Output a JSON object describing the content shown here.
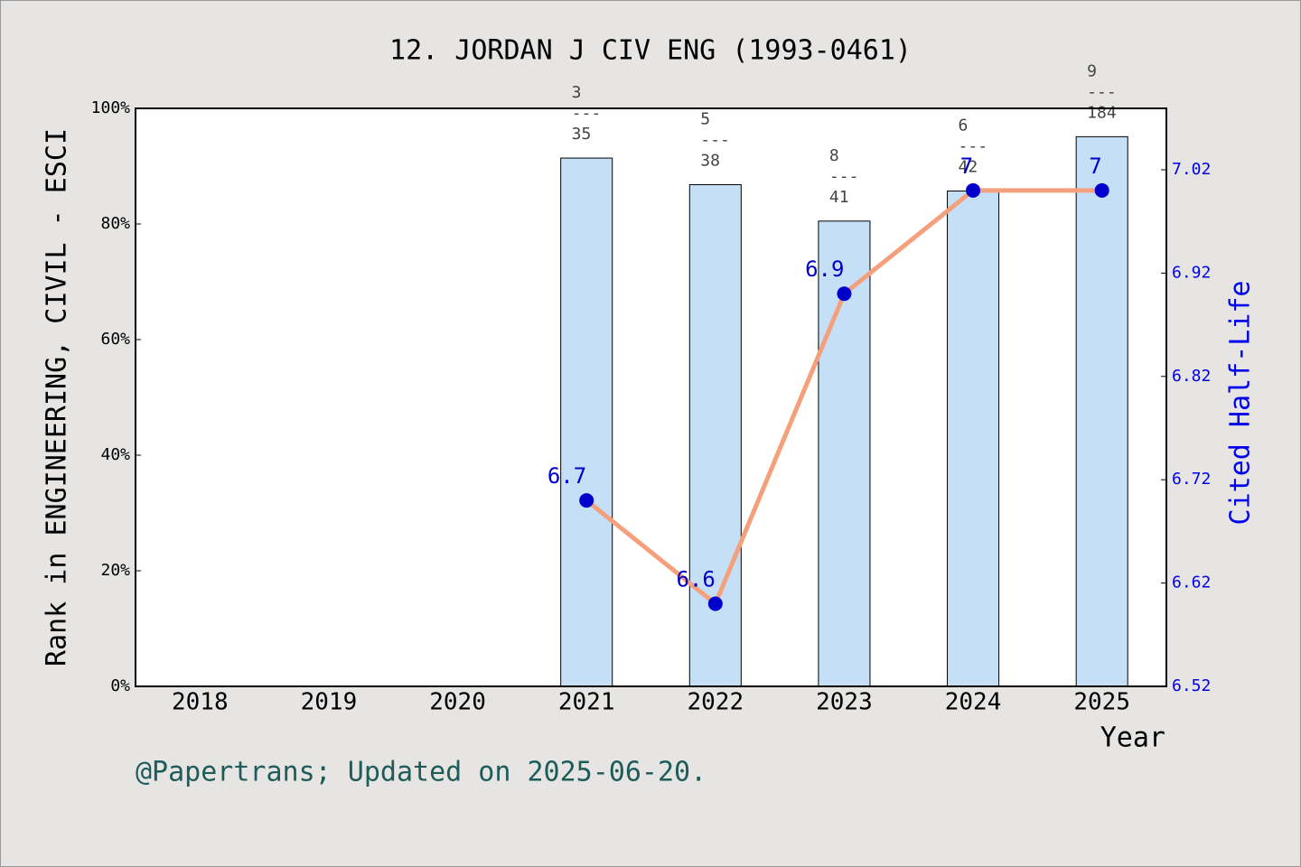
{
  "chart_data": {
    "type": "bar_line",
    "title": "12. JORDAN J CIV ENG (1993-0461)",
    "y_label": "Rank in ENGINEERING, CIVIL - ESCI",
    "y2_label": "Cited Half-Life",
    "x_label": "Year",
    "footer": "@Papertrans; Updated on 2025-06-20.",
    "categories": [
      "2018",
      "2019",
      "2020",
      "2021",
      "2022",
      "2023",
      "2024",
      "2025"
    ],
    "series": [
      {
        "name": "Rank",
        "kind": "bar",
        "color": "#c5dff6",
        "values": [
          null,
          null,
          null,
          91.4,
          86.8,
          80.5,
          85.7,
          95.1
        ],
        "bar_labels": [
          null,
          null,
          null,
          [
            "3",
            "---",
            "35"
          ],
          [
            "5",
            "---",
            "38"
          ],
          [
            "8",
            "---",
            "41"
          ],
          [
            "6",
            "---",
            "42"
          ],
          [
            "9",
            "---",
            "184"
          ]
        ]
      },
      {
        "name": "Cited Half-Life",
        "kind": "line",
        "axis": "y2",
        "color": "#f5a07c",
        "marker_color": "#0000cc",
        "values": [
          null,
          null,
          null,
          6.7,
          6.6,
          6.9,
          7,
          7
        ]
      }
    ],
    "ylim": [
      0,
      100
    ],
    "yticks": [
      {
        "value": 0,
        "label": "0%"
      },
      {
        "value": 20,
        "label": "20%"
      },
      {
        "value": 40,
        "label": "40%"
      },
      {
        "value": 60,
        "label": "60%"
      },
      {
        "value": 80,
        "label": "80%"
      },
      {
        "value": 100,
        "label": "100%"
      }
    ],
    "y2lim": [
      6.52,
      7.0794
    ],
    "y2ticks": [
      6.52,
      6.62,
      6.72,
      6.82,
      6.92,
      7.02
    ]
  }
}
